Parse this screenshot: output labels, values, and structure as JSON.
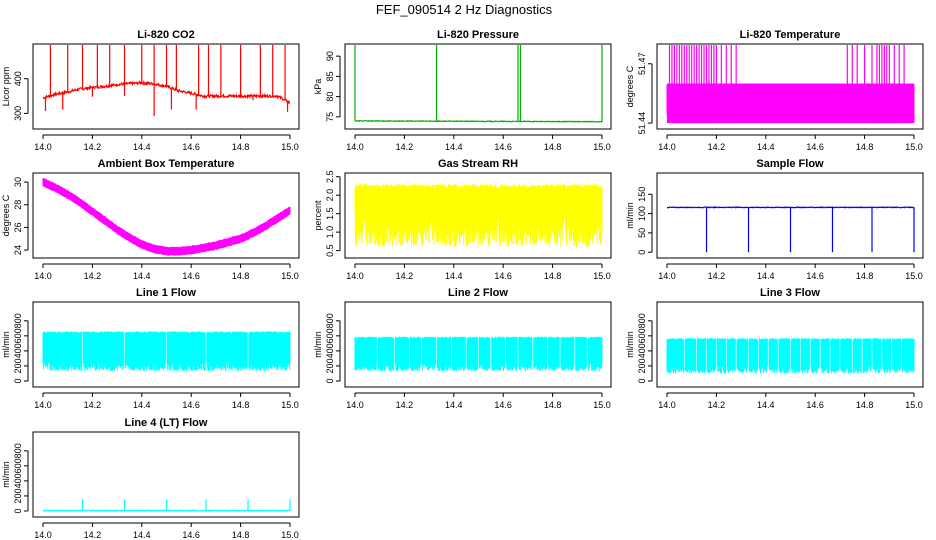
{
  "figure": {
    "title": "FEF_090514  2 Hz Diagnostics"
  },
  "chart_data": [
    {
      "type": "line",
      "title": "Li-820 CO2",
      "ylabel": "Licor ppm",
      "xlim": [
        14.0,
        15.0
      ],
      "ylim": [
        255,
        500
      ],
      "xticks": [
        "14.0",
        "14.2",
        "14.4",
        "14.6",
        "14.8",
        "15.0"
      ],
      "yticks": [
        "300",
        "400"
      ],
      "color": "#ff0000",
      "series": [
        {
          "x": [
            14.0,
            14.05,
            14.1,
            14.15,
            14.2,
            14.25,
            14.3,
            14.35,
            14.4,
            14.45,
            14.5,
            14.55,
            14.6,
            14.65,
            14.7,
            14.75,
            14.8,
            14.85,
            14.9,
            14.95,
            15.0
          ],
          "values": [
            345,
            355,
            362,
            370,
            375,
            378,
            383,
            386,
            388,
            385,
            378,
            365,
            358,
            350,
            350,
            350,
            350,
            350,
            350,
            350,
            330
          ]
        }
      ],
      "spikes_up": [
        14.03,
        14.1,
        14.16,
        14.22,
        14.27,
        14.33,
        14.4,
        14.45,
        14.5,
        14.54,
        14.63,
        14.67,
        14.72,
        14.8,
        14.88,
        14.93,
        14.98
      ],
      "spikes_down": [
        14.01,
        14.08,
        14.2,
        14.33,
        14.45,
        14.52,
        14.62,
        14.66,
        14.75,
        14.85,
        14.99
      ]
    },
    {
      "type": "line",
      "title": "Li-820 Pressure",
      "ylabel": "kPa",
      "xlim": [
        14.0,
        15.0
      ],
      "ylim": [
        72,
        93
      ],
      "xticks": [
        "14.0",
        "14.2",
        "14.4",
        "14.6",
        "14.8",
        "15.0"
      ],
      "yticks": [
        "75",
        "80",
        "85",
        "90"
      ],
      "color": "#00b000",
      "series": [
        {
          "x": [
            14.0,
            15.0
          ],
          "values": [
            74.0,
            73.8
          ]
        }
      ],
      "spikes_up": [
        14.0,
        14.33,
        14.66,
        14.67,
        15.0
      ]
    },
    {
      "type": "line",
      "title": "Li-820 Temperature",
      "ylabel": "degrees C",
      "xlim": [
        14.0,
        15.0
      ],
      "ylim": [
        51.437,
        51.48
      ],
      "xticks": [
        "14.0",
        "14.2",
        "14.4",
        "14.6",
        "14.8",
        "15.0"
      ],
      "yticks": [
        "51.44",
        "51.47"
      ],
      "color": "#ff00ff",
      "series": [
        {
          "x": [
            14.0,
            15.0
          ],
          "values": [
            51.44,
            51.44
          ]
        }
      ],
      "fill_band": [
        51.44,
        51.46
      ],
      "spikes_up": [
        14.01,
        14.02,
        14.03,
        14.04,
        14.05,
        14.06,
        14.07,
        14.08,
        14.09,
        14.1,
        14.11,
        14.12,
        14.13,
        14.14,
        14.15,
        14.16,
        14.17,
        14.18,
        14.19,
        14.2,
        14.22,
        14.24,
        14.26,
        14.28,
        14.73,
        14.75,
        14.77,
        14.8,
        14.83,
        14.85,
        14.86,
        14.87,
        14.88,
        14.89,
        14.9,
        14.92,
        14.94,
        14.96
      ]
    },
    {
      "type": "line",
      "title": "Ambient Box Temperature",
      "ylabel": "degrees C",
      "xlim": [
        14.0,
        15.0
      ],
      "ylim": [
        23.3,
        30.8
      ],
      "xticks": [
        "14.0",
        "14.2",
        "14.4",
        "14.6",
        "14.8",
        "15.0"
      ],
      "yticks": [
        "24",
        "26",
        "28",
        "30"
      ],
      "color": "#ff00ff",
      "series": [
        {
          "x": [
            14.0,
            14.05,
            14.1,
            14.15,
            14.2,
            14.25,
            14.3,
            14.35,
            14.4,
            14.45,
            14.5,
            14.55,
            14.6,
            14.65,
            14.7,
            14.75,
            14.8,
            14.85,
            14.9,
            14.95,
            15.0
          ],
          "values": [
            30.0,
            29.5,
            28.9,
            28.2,
            27.4,
            26.6,
            25.8,
            25.1,
            24.5,
            24.1,
            23.9,
            23.9,
            24.0,
            24.2,
            24.4,
            24.7,
            25.0,
            25.5,
            26.1,
            26.8,
            27.5
          ]
        }
      ],
      "band": 0.6
    },
    {
      "type": "line",
      "title": "Gas Stream RH",
      "ylabel": "percent",
      "xlim": [
        14.0,
        15.0
      ],
      "ylim": [
        0.3,
        2.6
      ],
      "xticks": [
        "14.0",
        "14.2",
        "14.4",
        "14.6",
        "14.8",
        "15.0"
      ],
      "yticks": [
        "0.5",
        "1.0",
        "1.5",
        "2.0",
        "2.5"
      ],
      "color": "#ffff00",
      "series": [
        {
          "x": [
            14.0,
            15.0
          ],
          "values": [
            2.2,
            2.3
          ]
        }
      ],
      "fill_band": [
        0.6,
        2.3
      ]
    },
    {
      "type": "line",
      "title": "Sample Flow",
      "ylabel": "ml/min",
      "xlim": [
        14.0,
        15.0
      ],
      "ylim": [
        -15,
        205
      ],
      "xticks": [
        "14.0",
        "14.2",
        "14.4",
        "14.6",
        "14.8",
        "15.0"
      ],
      "yticks": [
        "0",
        "50",
        "100",
        "150"
      ],
      "color": "#0000ff",
      "series": [
        {
          "x": [
            14.0,
            15.0
          ],
          "values": [
            116,
            116
          ]
        }
      ],
      "spikes_down": [
        14.16,
        14.33,
        14.5,
        14.67,
        14.83,
        15.0
      ]
    },
    {
      "type": "line",
      "title": "Line 1 Flow",
      "ylabel": "ml/min",
      "xlim": [
        14.0,
        15.0
      ],
      "ylim": [
        -80,
        1050
      ],
      "xticks": [
        "14.0",
        "14.2",
        "14.4",
        "14.6",
        "14.8",
        "15.0"
      ],
      "yticks": [
        "0",
        "200",
        "400",
        "600",
        "800"
      ],
      "color": "#00ffff",
      "series": [
        {
          "x": [
            14.0,
            15.0
          ],
          "values": [
            650,
            650
          ]
        }
      ],
      "fill_band": [
        130,
        660
      ],
      "gaps": [
        14.16,
        14.33,
        14.5,
        14.66,
        14.83
      ]
    },
    {
      "type": "line",
      "title": "Line 2 Flow",
      "ylabel": "ml/min",
      "xlim": [
        14.0,
        15.0
      ],
      "ylim": [
        -80,
        1050
      ],
      "xticks": [
        "14.0",
        "14.2",
        "14.4",
        "14.6",
        "14.8",
        "15.0"
      ],
      "yticks": [
        "0",
        "200",
        "400",
        "600",
        "800"
      ],
      "color": "#00ffff",
      "series": [
        {
          "x": [
            14.0,
            15.0
          ],
          "values": [
            580,
            580
          ]
        }
      ],
      "fill_band": [
        130,
        590
      ],
      "gaps": [
        14.09,
        14.16,
        14.22,
        14.27,
        14.33,
        14.39,
        14.45,
        14.5,
        14.55,
        14.61,
        14.66,
        14.72,
        14.78,
        14.83,
        14.89,
        14.94
      ]
    },
    {
      "type": "line",
      "title": "Line 3 Flow",
      "ylabel": "ml/min",
      "xlim": [
        14.0,
        15.0
      ],
      "ylim": [
        -80,
        1050
      ],
      "xticks": [
        "14.0",
        "14.2",
        "14.4",
        "14.6",
        "14.8",
        "15.0"
      ],
      "yticks": [
        "0",
        "200",
        "400",
        "600",
        "800"
      ],
      "color": "#00ffff",
      "series": [
        {
          "x": [
            14.0,
            15.0
          ],
          "values": [
            560,
            560
          ]
        }
      ],
      "fill_band": [
        100,
        570
      ],
      "gaps": [
        14.07,
        14.12,
        14.16,
        14.2,
        14.24,
        14.28,
        14.33,
        14.37,
        14.41,
        14.45,
        14.5,
        14.54,
        14.58,
        14.62,
        14.66,
        14.7,
        14.75,
        14.79,
        14.83,
        14.87,
        14.91,
        14.95
      ]
    },
    {
      "type": "line",
      "title": "Line 4 (LT) Flow",
      "ylabel": "ml/min",
      "xlim": [
        14.0,
        15.0
      ],
      "ylim": [
        -80,
        1050
      ],
      "xticks": [
        "14.0",
        "14.2",
        "14.4",
        "14.6",
        "14.8",
        "15.0"
      ],
      "yticks": [
        "0",
        "200",
        "400",
        "600",
        "800"
      ],
      "color": "#00ffff",
      "series": [
        {
          "x": [
            14.0,
            15.0
          ],
          "values": [
            5,
            5
          ]
        }
      ],
      "spikes_up": [
        14.16,
        14.33,
        14.5,
        14.66,
        14.83,
        15.0
      ],
      "spike_height": 150
    }
  ]
}
